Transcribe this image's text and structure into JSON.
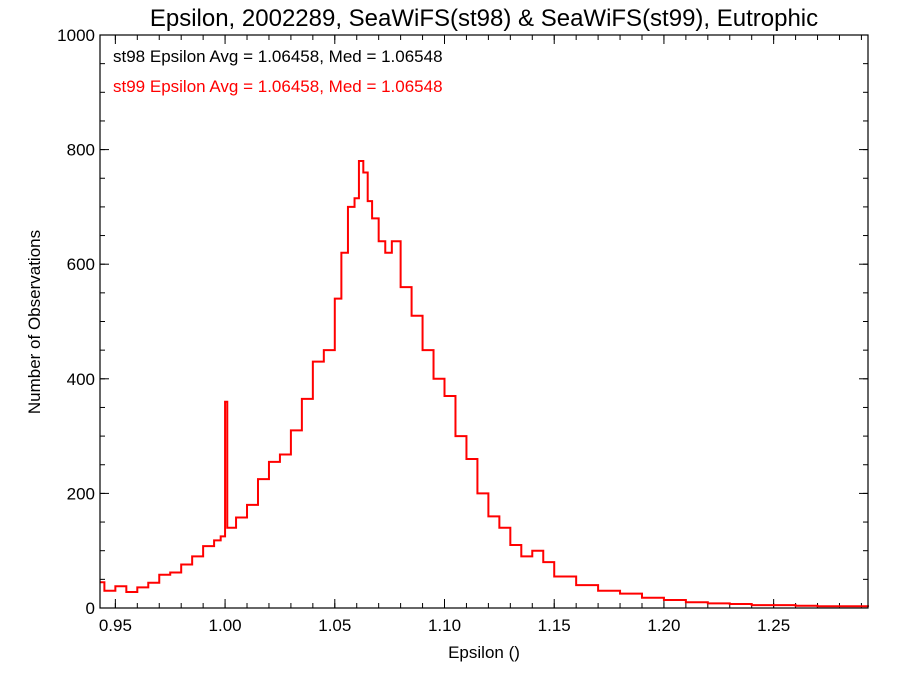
{
  "chart_data": {
    "type": "line",
    "title": "Epsilon, 2002289, SeaWiFS(st98) & SeaWiFS(st99), Eutrophic",
    "xlabel": "Epsilon ()",
    "ylabel": "Number of Observations",
    "xlim": [
      0.943,
      1.293
    ],
    "ylim": [
      0,
      1000
    ],
    "xticks": [
      0.95,
      1.0,
      1.05,
      1.1,
      1.15,
      1.2,
      1.25
    ],
    "xtick_labels": [
      "0.95",
      "1.00",
      "1.05",
      "1.10",
      "1.15",
      "1.20",
      "1.25"
    ],
    "yticks": [
      0,
      200,
      400,
      600,
      800,
      1000
    ],
    "ytick_labels": [
      "0",
      "200",
      "400",
      "600",
      "800",
      "1000"
    ],
    "grid": false,
    "step": "histogram",
    "annotations": [
      {
        "text": "st98 Epsilon Avg = 1.06458, Med = 1.06548",
        "color": "#000000"
      },
      {
        "text": "st99 Epsilon Avg = 1.06458, Med = 1.06548",
        "color": "#ff0000"
      }
    ],
    "series": [
      {
        "color": "#ff0000",
        "points": [
          [
            0.943,
            45
          ],
          [
            0.945,
            30
          ],
          [
            0.95,
            38
          ],
          [
            0.955,
            28
          ],
          [
            0.96,
            36
          ],
          [
            0.965,
            44
          ],
          [
            0.97,
            58
          ],
          [
            0.975,
            62
          ],
          [
            0.98,
            76
          ],
          [
            0.985,
            90
          ],
          [
            0.99,
            108
          ],
          [
            0.995,
            118
          ],
          [
            0.998,
            125
          ],
          [
            1.0,
            360
          ],
          [
            1.001,
            140
          ],
          [
            1.005,
            158
          ],
          [
            1.01,
            180
          ],
          [
            1.015,
            225
          ],
          [
            1.02,
            255
          ],
          [
            1.025,
            268
          ],
          [
            1.03,
            310
          ],
          [
            1.035,
            365
          ],
          [
            1.04,
            430
          ],
          [
            1.045,
            450
          ],
          [
            1.05,
            540
          ],
          [
            1.053,
            620
          ],
          [
            1.056,
            700
          ],
          [
            1.059,
            715
          ],
          [
            1.061,
            780
          ],
          [
            1.063,
            760
          ],
          [
            1.065,
            710
          ],
          [
            1.067,
            680
          ],
          [
            1.07,
            640
          ],
          [
            1.073,
            620
          ],
          [
            1.076,
            640
          ],
          [
            1.08,
            560
          ],
          [
            1.085,
            510
          ],
          [
            1.09,
            450
          ],
          [
            1.095,
            400
          ],
          [
            1.1,
            370
          ],
          [
            1.105,
            300
          ],
          [
            1.11,
            260
          ],
          [
            1.115,
            200
          ],
          [
            1.12,
            160
          ],
          [
            1.125,
            140
          ],
          [
            1.13,
            110
          ],
          [
            1.135,
            90
          ],
          [
            1.14,
            100
          ],
          [
            1.145,
            80
          ],
          [
            1.15,
            55
          ],
          [
            1.16,
            40
          ],
          [
            1.17,
            30
          ],
          [
            1.18,
            25
          ],
          [
            1.19,
            18
          ],
          [
            1.2,
            14
          ],
          [
            1.21,
            10
          ],
          [
            1.22,
            8
          ],
          [
            1.23,
            7
          ],
          [
            1.24,
            5
          ],
          [
            1.25,
            5
          ],
          [
            1.26,
            4
          ],
          [
            1.27,
            3
          ],
          [
            1.28,
            3
          ],
          [
            1.293,
            2
          ]
        ]
      }
    ]
  }
}
